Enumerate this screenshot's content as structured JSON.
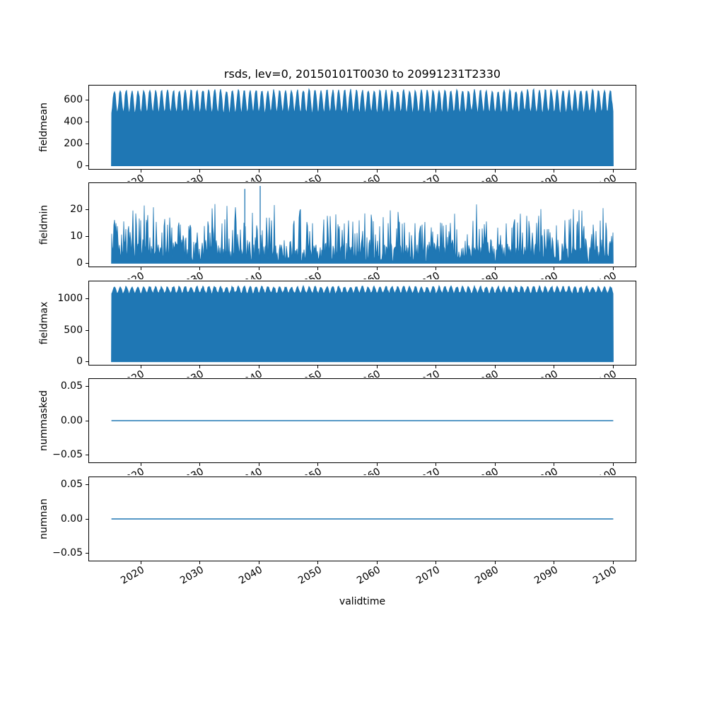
{
  "figure": {
    "title": "rsds, lev=0, 20150101T0030 to 20991231T2330",
    "xlabel": "validtime",
    "background_color": "#ffffff",
    "series_color": "#1f77b4",
    "axis_color": "#000000"
  },
  "axes": {
    "xlim": [
      2011.1,
      2103.9
    ],
    "xticks": [
      2020,
      2030,
      2040,
      2050,
      2060,
      2070,
      2080,
      2090,
      2100
    ],
    "xtick_labels": [
      "2020",
      "2030",
      "2040",
      "2050",
      "2060",
      "2070",
      "2080",
      "2090",
      "2100"
    ],
    "x_data_range_years": [
      2015.0,
      2100.0
    ],
    "grid": false
  },
  "chart_data": [
    {
      "name": "fieldmean",
      "ylabel": "fieldmean",
      "type": "area",
      "x_range": [
        2015.0,
        2100.0
      ],
      "ylim": [
        -35,
        735
      ],
      "ytick_values": [
        0,
        200,
        400,
        600
      ],
      "ytick_labels": [
        "0",
        "200",
        "400",
        "600"
      ],
      "envelope": {
        "winter_top": 480,
        "seasonal_amplitude": 205,
        "noise": 14,
        "seed": 11
      },
      "description": "Hourly rsds field mean 2015-2100; dense diurnal cycle fills from 0 up to an annual envelope of ~480-520 in winter peaking near 680-710 each summer"
    },
    {
      "name": "fieldmin",
      "ylabel": "fieldmin",
      "type": "spikes",
      "x_range": [
        2015.0,
        2100.0
      ],
      "ylim": [
        -1.45,
        30.0
      ],
      "ytick_values": [
        0,
        10,
        20
      ],
      "ytick_labels": [
        "0",
        "10",
        "20"
      ],
      "spikes": {
        "base_max": 7.5,
        "mid_probability": 0.28,
        "mid_extra": 9.5,
        "tall_probability": 0.05,
        "tall_base": 14,
        "tall_extra": 8,
        "seed": 23,
        "notable_peaks": [
          {
            "year": 2037.6,
            "value": 27.6
          },
          {
            "year": 2040.2,
            "value": 28.7
          }
        ]
      },
      "description": "Field minimum: noisy spikes mostly 0-18, frequent peaks 15-22, largest spikes ~27.6 and ~28.7 near 2038-2040"
    },
    {
      "name": "fieldmax",
      "ylabel": "fieldmax",
      "type": "area",
      "x_range": [
        2015.0,
        2100.0
      ],
      "ylim": [
        -61,
        1291
      ],
      "ytick_values": [
        0,
        500,
        1000
      ],
      "ytick_labels": [
        "0",
        "500",
        "1000"
      ],
      "envelope": {
        "winter_top": 1090,
        "seasonal_amplitude": 105,
        "noise": 14,
        "seed": 37
      },
      "description": "Field maximum fills solidly from 0 to ~1090-1210 with small annual scallops across 2015-2100"
    },
    {
      "name": "nummasked",
      "ylabel": "nummasked",
      "type": "flat-line",
      "value": 0.0,
      "x_range": [
        2015.0,
        2100.0
      ],
      "ylim": [
        -0.062,
        0.062
      ],
      "ytick_values": [
        -0.05,
        0.0,
        0.05
      ],
      "ytick_labels": [
        "−0.05",
        "0.00",
        "0.05"
      ],
      "description": "Number of masked points: constant 0.00 for the whole period"
    },
    {
      "name": "numnan",
      "ylabel": "numnan",
      "type": "flat-line",
      "value": 0.0,
      "x_range": [
        2015.0,
        2100.0
      ],
      "ylim": [
        -0.062,
        0.062
      ],
      "ytick_values": [
        -0.05,
        0.0,
        0.05
      ],
      "ytick_labels": [
        "−0.05",
        "0.00",
        "0.05"
      ],
      "description": "Number of NaN points: constant 0.00 for the whole period"
    }
  ]
}
